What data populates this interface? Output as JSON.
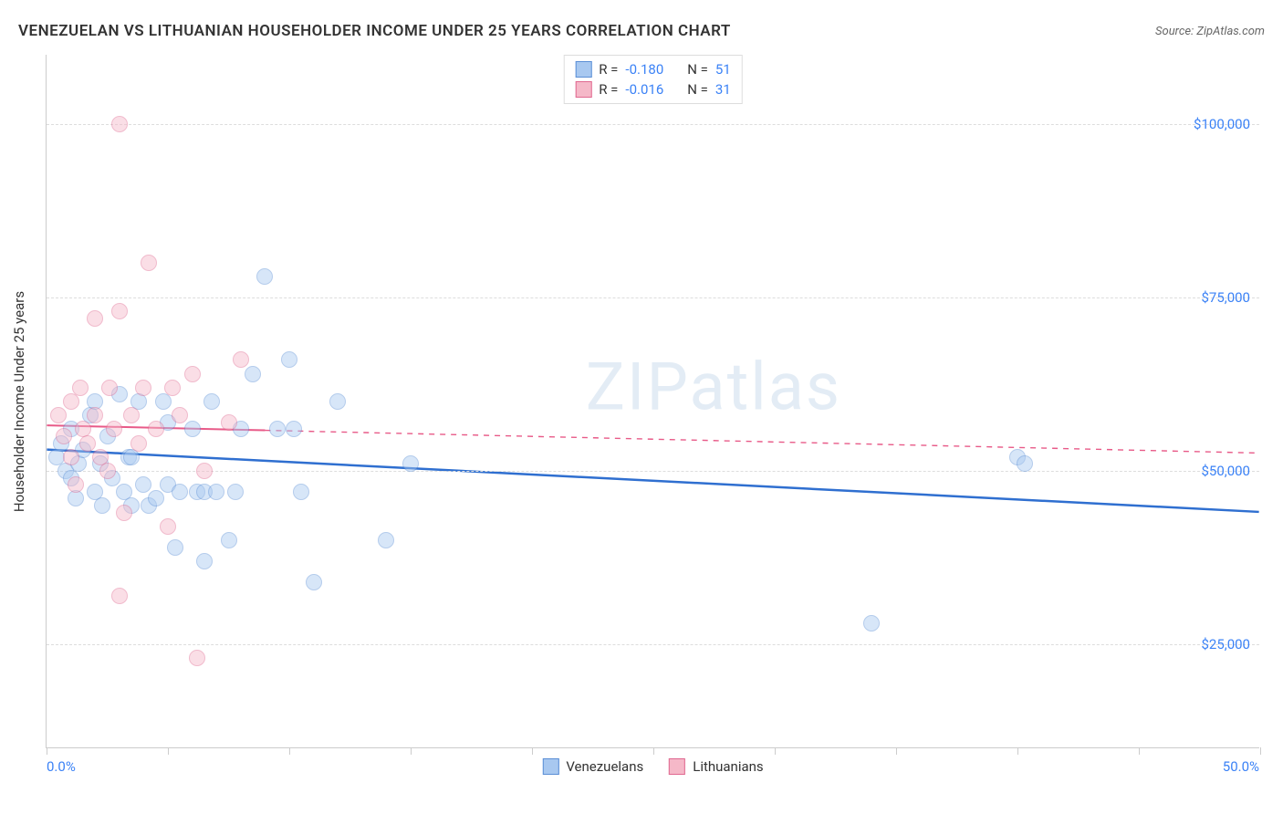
{
  "title": "VENEZUELAN VS LITHUANIAN HOUSEHOLDER INCOME UNDER 25 YEARS CORRELATION CHART",
  "source": "Source: ZipAtlas.com",
  "watermark": "ZIPatlas",
  "y_axis_title": "Householder Income Under 25 years",
  "chart": {
    "type": "scatter",
    "xlim": [
      0,
      50
    ],
    "ylim": [
      10000,
      110000
    ],
    "x_tick_positions": [
      0,
      5,
      10,
      15,
      20,
      25,
      30,
      35,
      40,
      45,
      50
    ],
    "x_labels": {
      "start": "0.0%",
      "end": "50.0%"
    },
    "y_ticks": [
      {
        "value": 25000,
        "label": "$25,000"
      },
      {
        "value": 50000,
        "label": "$50,000"
      },
      {
        "value": 75000,
        "label": "$75,000"
      },
      {
        "value": 100000,
        "label": "$100,000"
      }
    ],
    "grid_color": "#dddddd",
    "axis_color": "#cccccc",
    "tick_label_color": "#3b82f6",
    "background_color": "#ffffff",
    "marker_radius": 9,
    "marker_opacity": 0.45,
    "series": [
      {
        "name": "Venezuelans",
        "color_fill": "#a8c8f0",
        "color_stroke": "#5b8fd6",
        "R": "-0.180",
        "N": "51",
        "trend": {
          "y_start": 53000,
          "y_end": 44000,
          "x_solid_end": 50,
          "color": "#2f6fd0",
          "width": 2.5
        },
        "points": [
          {
            "x": 0.4,
            "y": 52000
          },
          {
            "x": 0.6,
            "y": 54000
          },
          {
            "x": 0.8,
            "y": 50000
          },
          {
            "x": 1.0,
            "y": 56000
          },
          {
            "x": 1.0,
            "y": 49000
          },
          {
            "x": 1.2,
            "y": 46000
          },
          {
            "x": 1.3,
            "y": 51000
          },
          {
            "x": 1.5,
            "y": 53000
          },
          {
            "x": 1.8,
            "y": 58000
          },
          {
            "x": 2.0,
            "y": 60000
          },
          {
            "x": 2.0,
            "y": 47000
          },
          {
            "x": 2.2,
            "y": 51000
          },
          {
            "x": 2.3,
            "y": 45000
          },
          {
            "x": 2.5,
            "y": 55000
          },
          {
            "x": 2.7,
            "y": 49000
          },
          {
            "x": 3.0,
            "y": 61000
          },
          {
            "x": 3.2,
            "y": 47000
          },
          {
            "x": 3.4,
            "y": 52000
          },
          {
            "x": 3.5,
            "y": 45000
          },
          {
            "x": 3.8,
            "y": 60000
          },
          {
            "x": 4.0,
            "y": 48000
          },
          {
            "x": 4.2,
            "y": 45000
          },
          {
            "x": 4.5,
            "y": 46000
          },
          {
            "x": 4.8,
            "y": 60000
          },
          {
            "x": 5.0,
            "y": 48000
          },
          {
            "x": 5.0,
            "y": 57000
          },
          {
            "x": 5.3,
            "y": 39000
          },
          {
            "x": 5.5,
            "y": 47000
          },
          {
            "x": 6.0,
            "y": 56000
          },
          {
            "x": 6.2,
            "y": 47000
          },
          {
            "x": 6.5,
            "y": 37000
          },
          {
            "x": 6.5,
            "y": 47000
          },
          {
            "x": 6.8,
            "y": 60000
          },
          {
            "x": 7.0,
            "y": 47000
          },
          {
            "x": 7.5,
            "y": 40000
          },
          {
            "x": 7.8,
            "y": 47000
          },
          {
            "x": 8.0,
            "y": 56000
          },
          {
            "x": 8.5,
            "y": 64000
          },
          {
            "x": 9.0,
            "y": 78000
          },
          {
            "x": 9.5,
            "y": 56000
          },
          {
            "x": 10.0,
            "y": 66000
          },
          {
            "x": 10.2,
            "y": 56000
          },
          {
            "x": 10.5,
            "y": 47000
          },
          {
            "x": 11.0,
            "y": 34000
          },
          {
            "x": 12.0,
            "y": 60000
          },
          {
            "x": 14.0,
            "y": 40000
          },
          {
            "x": 15.0,
            "y": 51000
          },
          {
            "x": 34.0,
            "y": 28000
          },
          {
            "x": 40.0,
            "y": 52000
          },
          {
            "x": 40.3,
            "y": 51000
          },
          {
            "x": 3.5,
            "y": 52000
          }
        ]
      },
      {
        "name": "Lithuanians",
        "color_fill": "#f5b8c8",
        "color_stroke": "#e06890",
        "R": "-0.016",
        "N": "31",
        "trend": {
          "y_start": 56500,
          "y_end": 52500,
          "x_solid_end": 9,
          "color": "#e85a88",
          "width": 2
        },
        "points": [
          {
            "x": 0.5,
            "y": 58000
          },
          {
            "x": 0.7,
            "y": 55000
          },
          {
            "x": 1.0,
            "y": 60000
          },
          {
            "x": 1.0,
            "y": 52000
          },
          {
            "x": 1.2,
            "y": 48000
          },
          {
            "x": 1.4,
            "y": 62000
          },
          {
            "x": 1.5,
            "y": 56000
          },
          {
            "x": 1.7,
            "y": 54000
          },
          {
            "x": 2.0,
            "y": 72000
          },
          {
            "x": 2.0,
            "y": 58000
          },
          {
            "x": 2.2,
            "y": 52000
          },
          {
            "x": 2.5,
            "y": 50000
          },
          {
            "x": 2.6,
            "y": 62000
          },
          {
            "x": 2.8,
            "y": 56000
          },
          {
            "x": 3.0,
            "y": 73000
          },
          {
            "x": 3.0,
            "y": 100000
          },
          {
            "x": 3.2,
            "y": 44000
          },
          {
            "x": 3.5,
            "y": 58000
          },
          {
            "x": 3.8,
            "y": 54000
          },
          {
            "x": 4.0,
            "y": 62000
          },
          {
            "x": 4.2,
            "y": 80000
          },
          {
            "x": 4.5,
            "y": 56000
          },
          {
            "x": 3.0,
            "y": 32000
          },
          {
            "x": 5.2,
            "y": 62000
          },
          {
            "x": 5.5,
            "y": 58000
          },
          {
            "x": 6.0,
            "y": 64000
          },
          {
            "x": 6.2,
            "y": 23000
          },
          {
            "x": 6.5,
            "y": 50000
          },
          {
            "x": 7.5,
            "y": 57000
          },
          {
            "x": 8.0,
            "y": 66000
          },
          {
            "x": 5.0,
            "y": 42000
          }
        ]
      }
    ],
    "stats_box": {
      "label_R": "R =",
      "label_N": "N ="
    }
  }
}
